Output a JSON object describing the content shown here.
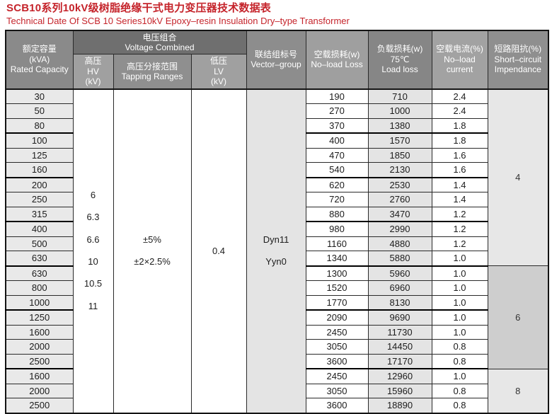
{
  "page": {
    "title": "SCB10系列10kV级树脂绝缘干式电力变压器技术数据表",
    "subtitle": "Technical Date Of SCB 10 Series10kV Epoxy–resin Insulation Dry–type Transformer"
  },
  "colors": {
    "accent_red": "#c5242b",
    "header_dark_gray": "#6f6f6f",
    "header_mid_gray": "#8d8d8d",
    "header_light_gray": "#a0a0a0",
    "row_shade_gray": "#e9e9e9",
    "impedance_light": "#e7e7e7",
    "impedance_dark": "#cecece"
  },
  "table": {
    "headers": {
      "rated_capacity": "额定容量\n(kVA)\nRated Capacity",
      "voltage_combined": "电压组合\nVoltage Combined",
      "hv": "高压\nHV\n(kV)",
      "tapping_ranges": "高压分接范围\nTapping Ranges",
      "lv": "低压\nLV\n(kV)",
      "vector_group": "联结组标号\nVector–group",
      "no_load_loss": "空载损耗(w)\nNo–load Loss",
      "load_loss": "负载损耗(w)\n75℃\nLoad loss",
      "no_load_current": "空载电流(%)\nNo–load\ncurrent",
      "impedance": "短路阻抗(%)\nShort–circuit\nImpendance"
    },
    "merged": {
      "hv_values": [
        "6",
        "6.3",
        "6.6",
        "10",
        "10.5",
        "11"
      ],
      "tapping_values": [
        "±5%",
        "±2×2.5%"
      ],
      "lv_value": "0.4",
      "vector_values": [
        "Dyn11",
        "Yyn0"
      ]
    },
    "rows": [
      {
        "capacity": "30",
        "no_load_loss": "190",
        "load_loss": "710",
        "no_load_current": "2.4"
      },
      {
        "capacity": "50",
        "no_load_loss": "270",
        "load_loss": "1000",
        "no_load_current": "2.4"
      },
      {
        "capacity": "80",
        "no_load_loss": "370",
        "load_loss": "1380",
        "no_load_current": "1.8"
      },
      {
        "capacity": "100",
        "no_load_loss": "400",
        "load_loss": "1570",
        "no_load_current": "1.8"
      },
      {
        "capacity": "125",
        "no_load_loss": "470",
        "load_loss": "1850",
        "no_load_current": "1.6"
      },
      {
        "capacity": "160",
        "no_load_loss": "540",
        "load_loss": "2130",
        "no_load_current": "1.6"
      },
      {
        "capacity": "200",
        "no_load_loss": "620",
        "load_loss": "2530",
        "no_load_current": "1.4"
      },
      {
        "capacity": "250",
        "no_load_loss": "720",
        "load_loss": "2760",
        "no_load_current": "1.4"
      },
      {
        "capacity": "315",
        "no_load_loss": "880",
        "load_loss": "3470",
        "no_load_current": "1.2"
      },
      {
        "capacity": "400",
        "no_load_loss": "980",
        "load_loss": "2990",
        "no_load_current": "1.2"
      },
      {
        "capacity": "500",
        "no_load_loss": "1160",
        "load_loss": "4880",
        "no_load_current": "1.2"
      },
      {
        "capacity": "630",
        "no_load_loss": "1340",
        "load_loss": "5880",
        "no_load_current": "1.0"
      },
      {
        "capacity": "630",
        "no_load_loss": "1300",
        "load_loss": "5960",
        "no_load_current": "1.0"
      },
      {
        "capacity": "800",
        "no_load_loss": "1520",
        "load_loss": "6960",
        "no_load_current": "1.0"
      },
      {
        "capacity": "1000",
        "no_load_loss": "1770",
        "load_loss": "8130",
        "no_load_current": "1.0"
      },
      {
        "capacity": "1250",
        "no_load_loss": "2090",
        "load_loss": "9690",
        "no_load_current": "1.0"
      },
      {
        "capacity": "1600",
        "no_load_loss": "2450",
        "load_loss": "11730",
        "no_load_current": "1.0"
      },
      {
        "capacity": "2000",
        "no_load_loss": "3050",
        "load_loss": "14450",
        "no_load_current": "0.8"
      },
      {
        "capacity": "2500",
        "no_load_loss": "3600",
        "load_loss": "17170",
        "no_load_current": "0.8"
      },
      {
        "capacity": "1600",
        "no_load_loss": "2450",
        "load_loss": "12960",
        "no_load_current": "1.0"
      },
      {
        "capacity": "2000",
        "no_load_loss": "3050",
        "load_loss": "15960",
        "no_load_current": "0.8"
      },
      {
        "capacity": "2500",
        "no_load_loss": "3600",
        "load_loss": "18890",
        "no_load_current": "0.8"
      }
    ],
    "impedance_groups": [
      {
        "value": "4",
        "row_span": 12
      },
      {
        "value": "6",
        "row_span": 7
      },
      {
        "value": "8",
        "row_span": 3
      }
    ],
    "thick_after_rows": [
      3,
      6,
      9,
      12,
      15,
      19
    ]
  }
}
